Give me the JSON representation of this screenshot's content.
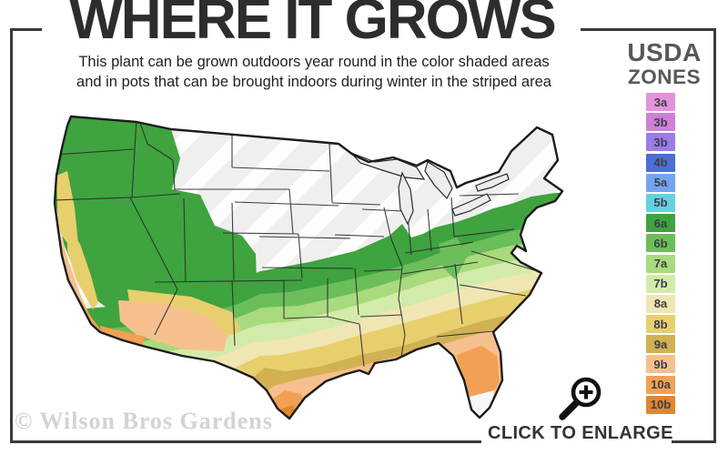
{
  "frame": {
    "color": "#3a3a3a"
  },
  "header": {
    "title": "WHERE IT GROWS",
    "subtitle_line1": "This plant can be grown outdoors year round in the color shaded areas",
    "subtitle_line2": "and in pots that can be brought indoors during winter in the striped area"
  },
  "legend": {
    "title_line1": "USDA",
    "title_line2": "ZONES",
    "zones": [
      {
        "label": "3a",
        "color": "#e193dd"
      },
      {
        "label": "3b",
        "color": "#cf7fd8"
      },
      {
        "label": "3b",
        "color": "#9d7be8"
      },
      {
        "label": "4b",
        "color": "#4c6ed6"
      },
      {
        "label": "5a",
        "color": "#75a4ee"
      },
      {
        "label": "5b",
        "color": "#64d1e1"
      },
      {
        "label": "6a",
        "color": "#3fa33f"
      },
      {
        "label": "6b",
        "color": "#6cbe5a"
      },
      {
        "label": "7a",
        "color": "#a9da7d"
      },
      {
        "label": "7b",
        "color": "#d3ebaa"
      },
      {
        "label": "8a",
        "color": "#f0e6b4"
      },
      {
        "label": "8b",
        "color": "#e8cf6d"
      },
      {
        "label": "9a",
        "color": "#d2b153"
      },
      {
        "label": "9b",
        "color": "#f6c08e"
      },
      {
        "label": "10a",
        "color": "#f2a054"
      },
      {
        "label": "10b",
        "color": "#e1862f"
      }
    ]
  },
  "map": {
    "unshaded_color": "#efefef",
    "stripe_color": "#ffffff",
    "lake_color": "#eceeee",
    "florida_tip_color": "#f7f7f7"
  },
  "footer": {
    "watermark": "© Wilson Bros Gardens",
    "enlarge_label": "CLICK TO ENLARGE"
  }
}
